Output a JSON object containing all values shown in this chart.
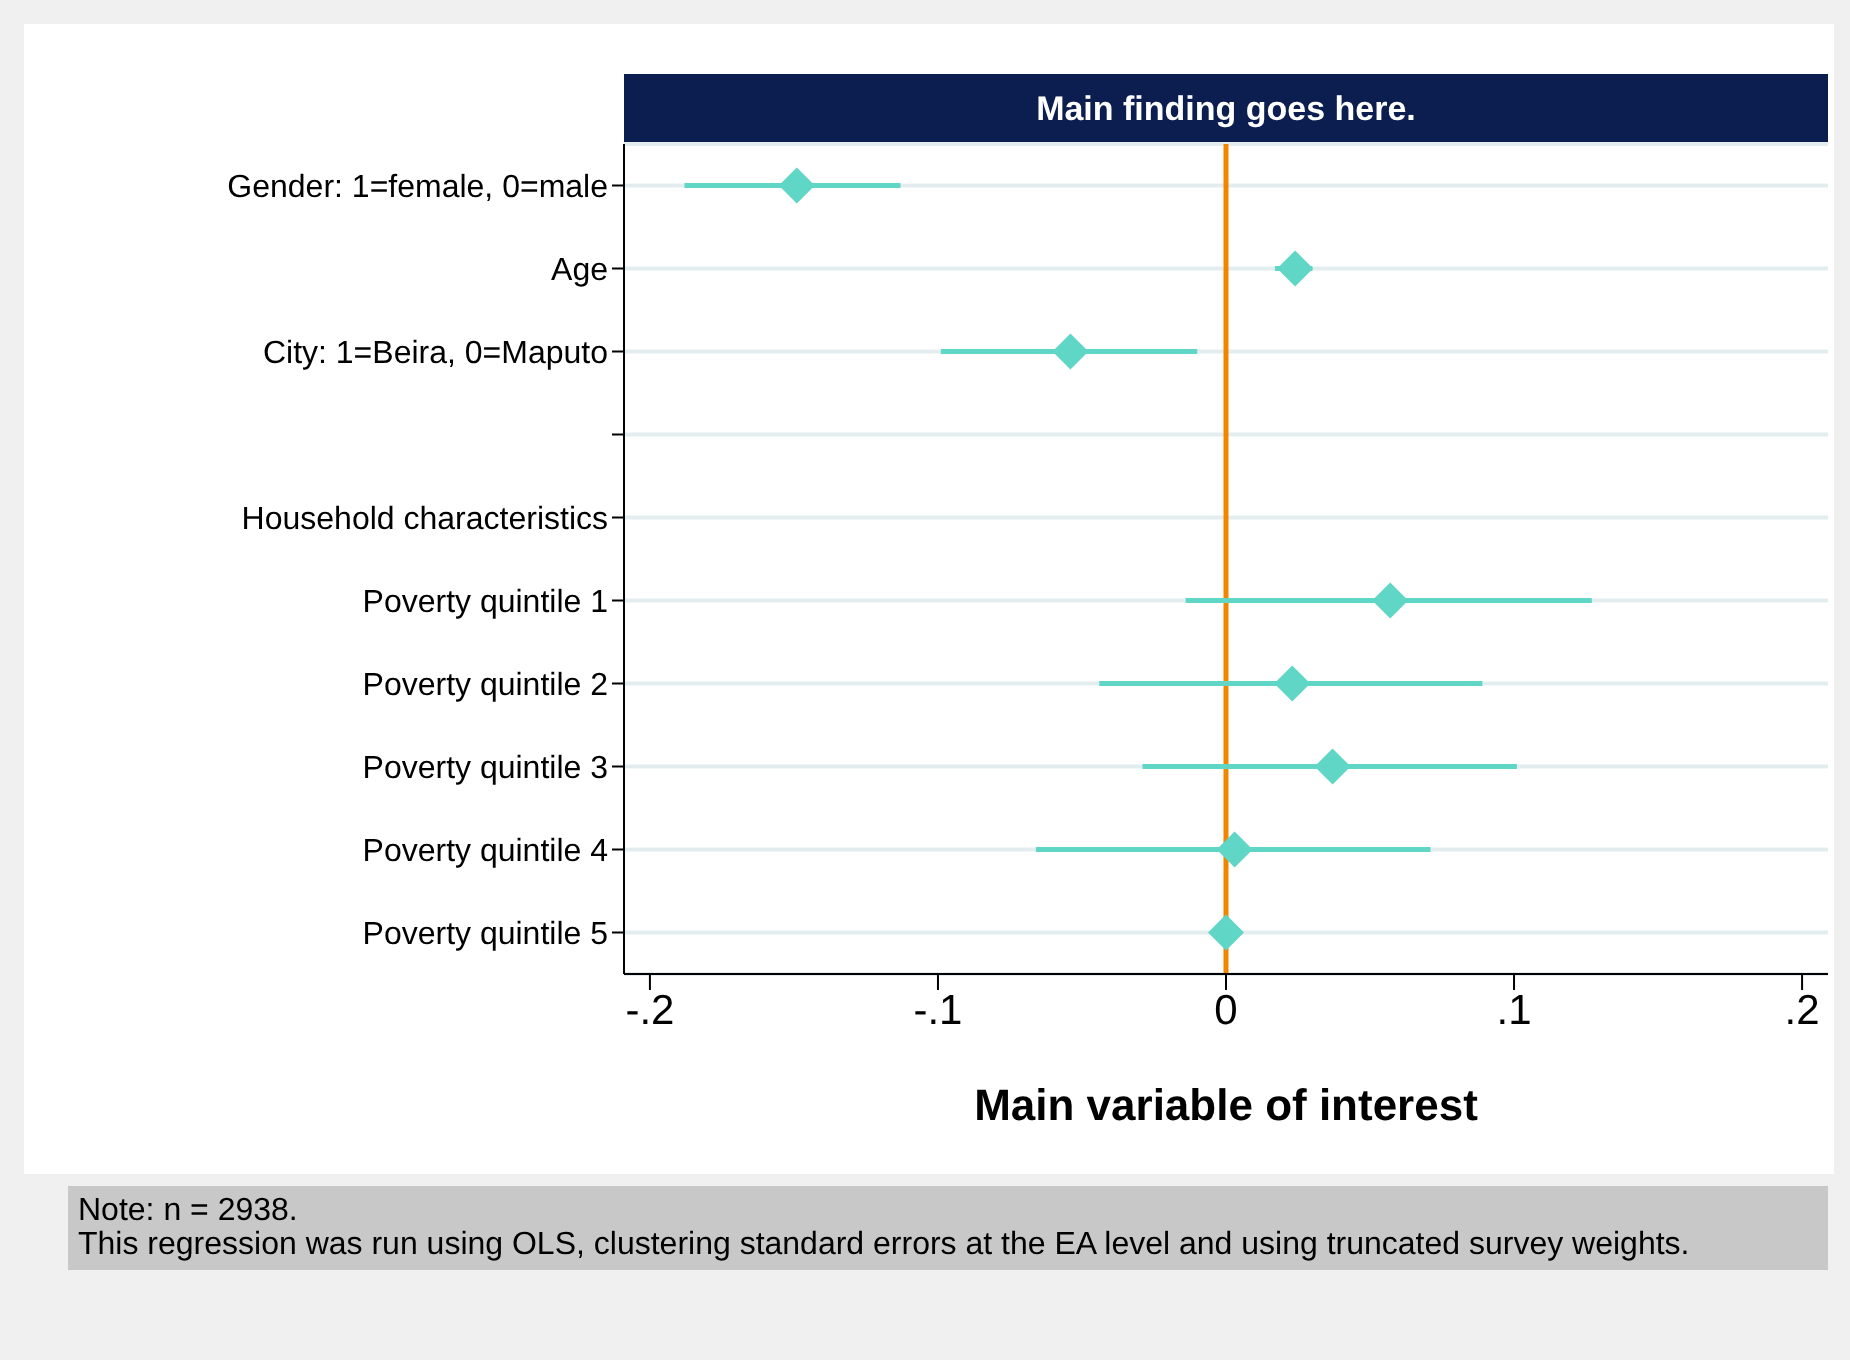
{
  "chart_data": {
    "type": "scatter",
    "orientation": "horizontal",
    "title": "Main finding goes here.",
    "xlabel": "Main variable of interest",
    "categories": [
      "Gender: 1=female, 0=male",
      "Age",
      "City: 1=Beira, 0=Maputo",
      null,
      "Household characteristics",
      "Poverty quintile 1",
      "Poverty quintile 2",
      "Poverty quintile 3",
      "Poverty quintile 4",
      "Poverty quintile 5"
    ],
    "values": [
      -0.149,
      0.024,
      -0.054,
      null,
      null,
      0.057,
      0.023,
      0.037,
      0.003,
      0.0
    ],
    "errors": [
      [
        -0.188,
        -0.113
      ],
      [
        0.017,
        0.03
      ],
      [
        -0.099,
        -0.01
      ],
      null,
      null,
      [
        -0.014,
        0.127
      ],
      [
        -0.044,
        0.089
      ],
      [
        -0.029,
        0.101
      ],
      [
        -0.066,
        0.071
      ],
      null
    ],
    "color": "#5fd6c6",
    "marker": "diamond",
    "grid": "y",
    "xlim": [
      -0.209,
      0.209
    ],
    "xticks": [
      {
        "value": -0.2,
        "label": "-.2"
      },
      {
        "value": -0.1,
        "label": "-.1"
      },
      0,
      {
        "value": 0.1,
        "label": ".1"
      },
      {
        "value": 0.2,
        "label": ".2"
      }
    ],
    "ref_lines": [
      {
        "axis": "x",
        "value": 0,
        "label": null,
        "color": "#f28500"
      }
    ],
    "annotations": [
      "Note: n = 2938.",
      "This regression was run using OLS, clustering standard errors at the EA level and using truncated survey weights."
    ]
  }
}
